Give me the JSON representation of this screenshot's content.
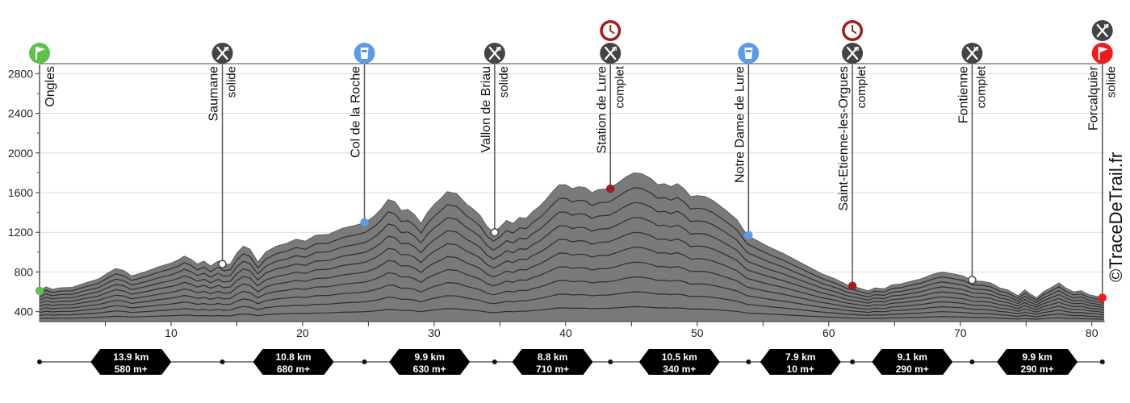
{
  "chart_data": {
    "type": "area",
    "x_unit": "km",
    "y_unit": "m",
    "xlim": [
      0,
      81
    ],
    "ylim": [
      300,
      2900
    ],
    "x_ticks": [
      10,
      20,
      30,
      40,
      50,
      60,
      70,
      80
    ],
    "y_ticks": [
      400,
      800,
      1200,
      1600,
      2000,
      2400,
      2800
    ],
    "credit": "©TraceDeTrail.fr",
    "colors": {
      "profile": "#7a7a7a",
      "contour": "#222222",
      "food": "#444444",
      "water": "#5b9bea",
      "start": "#5cc24a",
      "finish": "#ee1c1c",
      "timebarrier": "#a11c1c"
    },
    "profile": [
      [
        0,
        610
      ],
      [
        0.5,
        650
      ],
      [
        1,
        625
      ],
      [
        1.5,
        640
      ],
      [
        2.5,
        645
      ],
      [
        3.5,
        690
      ],
      [
        4.5,
        730
      ],
      [
        5.2,
        790
      ],
      [
        5.8,
        835
      ],
      [
        6.4,
        815
      ],
      [
        7,
        760
      ],
      [
        8,
        800
      ],
      [
        9,
        850
      ],
      [
        10,
        890
      ],
      [
        10.6,
        925
      ],
      [
        11,
        960
      ],
      [
        11.5,
        930
      ],
      [
        12,
        880
      ],
      [
        12.5,
        910
      ],
      [
        13,
        860
      ],
      [
        13.6,
        910
      ],
      [
        14,
        870
      ],
      [
        14.5,
        880
      ],
      [
        15,
        990
      ],
      [
        15.5,
        1060
      ],
      [
        16,
        1030
      ],
      [
        16.6,
        900
      ],
      [
        17.2,
        1000
      ],
      [
        18,
        1060
      ],
      [
        18.8,
        1090
      ],
      [
        19.5,
        1130
      ],
      [
        20.2,
        1110
      ],
      [
        21,
        1170
      ],
      [
        22,
        1180
      ],
      [
        23,
        1240
      ],
      [
        24,
        1270
      ],
      [
        24.8,
        1300
      ],
      [
        25.5,
        1370
      ],
      [
        26,
        1440
      ],
      [
        26.5,
        1530
      ],
      [
        27,
        1510
      ],
      [
        27.5,
        1420
      ],
      [
        28,
        1430
      ],
      [
        28.5,
        1380
      ],
      [
        29,
        1290
      ],
      [
        29.5,
        1400
      ],
      [
        30,
        1480
      ],
      [
        30.5,
        1540
      ],
      [
        31,
        1610
      ],
      [
        31.7,
        1590
      ],
      [
        32.5,
        1480
      ],
      [
        33,
        1430
      ],
      [
        33.5,
        1370
      ],
      [
        34,
        1260
      ],
      [
        34.5,
        1200
      ],
      [
        35,
        1250
      ],
      [
        35.5,
        1320
      ],
      [
        36,
        1290
      ],
      [
        36.5,
        1350
      ],
      [
        37,
        1340
      ],
      [
        37.5,
        1410
      ],
      [
        38,
        1460
      ],
      [
        38.5,
        1530
      ],
      [
        39,
        1610
      ],
      [
        39.5,
        1680
      ],
      [
        40,
        1680
      ],
      [
        40.5,
        1640
      ],
      [
        41,
        1660
      ],
      [
        41.5,
        1650
      ],
      [
        42,
        1600
      ],
      [
        42.5,
        1630
      ],
      [
        43.3,
        1640
      ],
      [
        44,
        1700
      ],
      [
        44.6,
        1760
      ],
      [
        45.2,
        1800
      ],
      [
        45.8,
        1790
      ],
      [
        46.5,
        1740
      ],
      [
        47,
        1680
      ],
      [
        47.5,
        1690
      ],
      [
        48,
        1660
      ],
      [
        48.5,
        1690
      ],
      [
        49,
        1640
      ],
      [
        49.5,
        1560
      ],
      [
        50,
        1570
      ],
      [
        50.6,
        1560
      ],
      [
        51.2,
        1520
      ],
      [
        52,
        1440
      ],
      [
        53,
        1330
      ],
      [
        53.8,
        1170
      ],
      [
        54.5,
        1120
      ],
      [
        55.5,
        1050
      ],
      [
        56.5,
        990
      ],
      [
        57.5,
        920
      ],
      [
        58.5,
        850
      ],
      [
        59.5,
        780
      ],
      [
        60.5,
        730
      ],
      [
        61.4,
        670
      ],
      [
        62,
        650
      ],
      [
        62.5,
        630
      ],
      [
        63,
        610
      ],
      [
        63.5,
        640
      ],
      [
        64.2,
        630
      ],
      [
        64.8,
        670
      ],
      [
        65.5,
        680
      ],
      [
        66.2,
        705
      ],
      [
        67,
        730
      ],
      [
        68,
        780
      ],
      [
        68.6,
        800
      ],
      [
        69.5,
        780
      ],
      [
        70.2,
        760
      ],
      [
        71,
        710
      ],
      [
        71.7,
        705
      ],
      [
        72.3,
        690
      ],
      [
        73,
        640
      ],
      [
        73.6,
        620
      ],
      [
        74,
        590
      ],
      [
        74.4,
        560
      ],
      [
        74.9,
        620
      ],
      [
        75.3,
        580
      ],
      [
        75.8,
        540
      ],
      [
        76.3,
        600
      ],
      [
        77,
        650
      ],
      [
        77.5,
        690
      ],
      [
        78,
        640
      ],
      [
        78.6,
        600
      ],
      [
        79.2,
        610
      ],
      [
        79.8,
        570
      ],
      [
        80.5,
        550
      ],
      [
        80.9,
        530
      ]
    ],
    "waypoints": [
      {
        "km": 0,
        "alt": 610,
        "name": "Ongles",
        "detail": "",
        "icon": "start-flag-icon",
        "timebarrier": false
      },
      {
        "km": 13.9,
        "alt": 880,
        "name": "Saumane",
        "detail": "solide",
        "icon": "food-icon",
        "timebarrier": false
      },
      {
        "km": 24.7,
        "alt": 1300,
        "name": "Col de la Roche",
        "detail": "",
        "icon": "water-icon",
        "timebarrier": false
      },
      {
        "km": 34.6,
        "alt": 1200,
        "name": "Vallon de Briau",
        "detail": "solide",
        "icon": "food-icon",
        "timebarrier": false
      },
      {
        "km": 43.4,
        "alt": 1640,
        "name": "Station de Lure",
        "detail": "complet",
        "icon": "food-icon",
        "timebarrier": true
      },
      {
        "km": 53.9,
        "alt": 1170,
        "name": "Notre Dame de Lure",
        "detail": "",
        "icon": "water-icon",
        "timebarrier": false
      },
      {
        "km": 61.8,
        "alt": 660,
        "name": "Saint-Etienne-les-Orgues",
        "detail": "complet",
        "icon": "food-icon",
        "timebarrier": true
      },
      {
        "km": 70.9,
        "alt": 720,
        "name": "Fontienne",
        "detail": "complet",
        "icon": "food-icon",
        "timebarrier": false
      },
      {
        "km": 80.8,
        "alt": 540,
        "name": "Forcalquier",
        "detail": "solide",
        "icon": "finish-flag-icon",
        "timebarrier": false,
        "extra_icon": "food-icon"
      }
    ],
    "segments": [
      {
        "distance": "13.9 km",
        "climb": "580 m+"
      },
      {
        "distance": "10.8 km",
        "climb": "680 m+"
      },
      {
        "distance": "9.9 km",
        "climb": "630 m+"
      },
      {
        "distance": "8.8 km",
        "climb": "710 m+"
      },
      {
        "distance": "10.5 km",
        "climb": "340 m+"
      },
      {
        "distance": "7.9 km",
        "climb": "10 m+"
      },
      {
        "distance": "9.1 km",
        "climb": "290 m+"
      },
      {
        "distance": "9.9 km",
        "climb": "290 m+"
      }
    ]
  }
}
